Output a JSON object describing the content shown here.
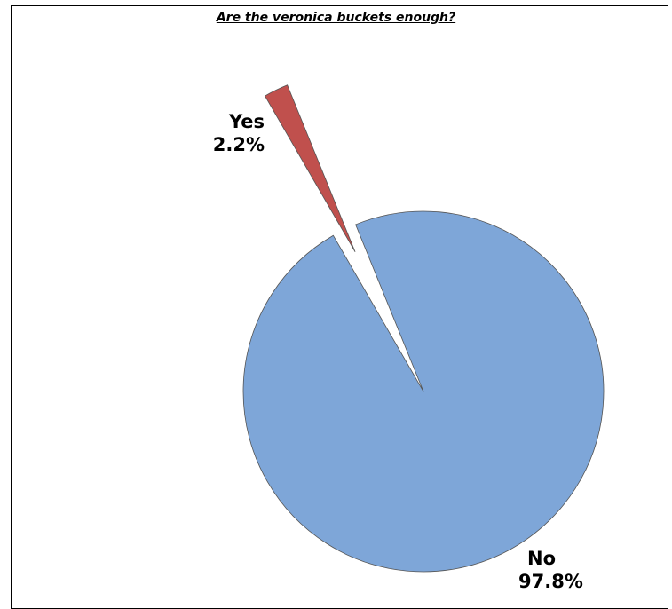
{
  "chart_data": {
    "type": "pie",
    "title": "Are the veronica buckets enough?",
    "slices": [
      {
        "label": "Yes",
        "value": 2.2,
        "value_label": "2.2%",
        "color": "#C0504D",
        "exploded": true
      },
      {
        "label": "No",
        "value": 97.8,
        "value_label": "97.8%",
        "color": "#7EA6D8",
        "exploded": false
      }
    ]
  }
}
